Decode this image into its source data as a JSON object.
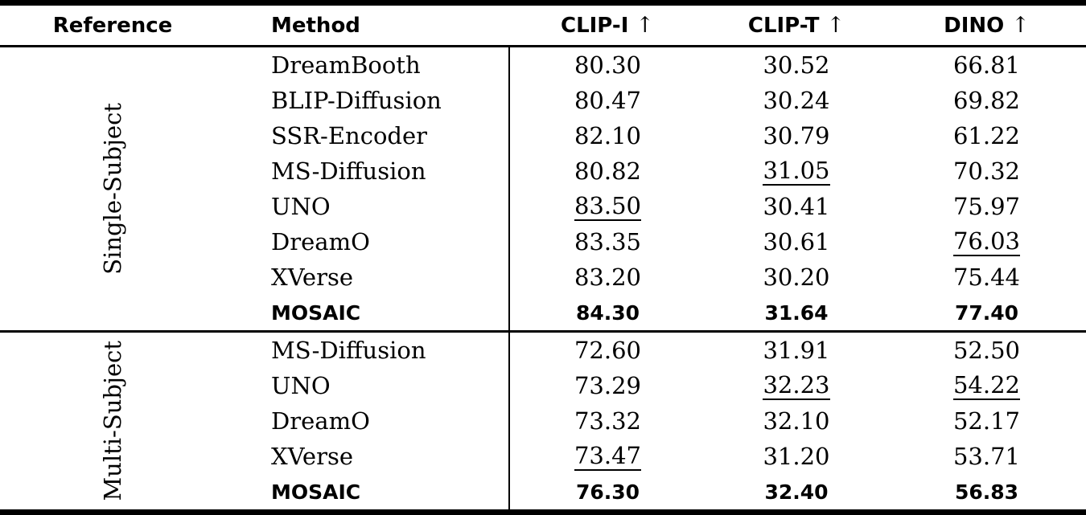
{
  "table": {
    "columns": [
      {
        "label": "Reference"
      },
      {
        "label": "Method"
      },
      {
        "label": "CLIP-I",
        "arrow": "↑"
      },
      {
        "label": "CLIP-T",
        "arrow": "↑"
      },
      {
        "label": "DINO",
        "arrow": "↑"
      }
    ],
    "sections": [
      {
        "label": "Single-Subject",
        "rows": [
          {
            "method": "DreamBooth",
            "clip_i": "80.30",
            "clip_t": "30.52",
            "dino": "66.81"
          },
          {
            "method": "BLIP-Diffusion",
            "clip_i": "80.47",
            "clip_t": "30.24",
            "dino": "69.82"
          },
          {
            "method": "SSR-Encoder",
            "clip_i": "82.10",
            "clip_t": "30.79",
            "dino": "61.22"
          },
          {
            "method": "MS-Diffusion",
            "clip_i": "80.82",
            "clip_t": "31.05",
            "dino": "70.32"
          },
          {
            "method": "UNO",
            "clip_i": "83.50",
            "clip_t": "30.41",
            "dino": "75.97"
          },
          {
            "method": "DreamO",
            "clip_i": "83.35",
            "clip_t": "30.61",
            "dino": "76.03"
          },
          {
            "method": "XVerse",
            "clip_i": "83.20",
            "clip_t": "30.20",
            "dino": "75.44"
          },
          {
            "method": "MOSAIC",
            "clip_i": "84.30",
            "clip_t": "31.64",
            "dino": "77.40"
          }
        ]
      },
      {
        "label": "Multi-Subject",
        "rows": [
          {
            "method": "MS-Diffusion",
            "clip_i": "72.60",
            "clip_t": "31.91",
            "dino": "52.50"
          },
          {
            "method": "UNO",
            "clip_i": "73.29",
            "clip_t": "32.23",
            "dino": "54.22"
          },
          {
            "method": "DreamO",
            "clip_i": "73.32",
            "clip_t": "32.10",
            "dino": "52.17"
          },
          {
            "method": "XVerse",
            "clip_i": "73.47",
            "clip_t": "31.20",
            "dino": "53.71"
          },
          {
            "method": "MOSAIC",
            "clip_i": "76.30",
            "clip_t": "32.40",
            "dino": "56.83"
          }
        ]
      }
    ],
    "formatting": {
      "bold_rows": [
        "Single-Subject:MOSAIC",
        "Multi-Subject:MOSAIC"
      ],
      "underlined_values": [
        "Single-Subject:UNO:clip_i:83.50",
        "Single-Subject:MS-Diffusion:clip_t:31.05",
        "Single-Subject:DreamO:dino:76.03",
        "Multi-Subject:XVerse:clip_i:73.47",
        "Multi-Subject:UNO:clip_t:32.23",
        "Multi-Subject:UNO:dino:54.22"
      ]
    }
  }
}
